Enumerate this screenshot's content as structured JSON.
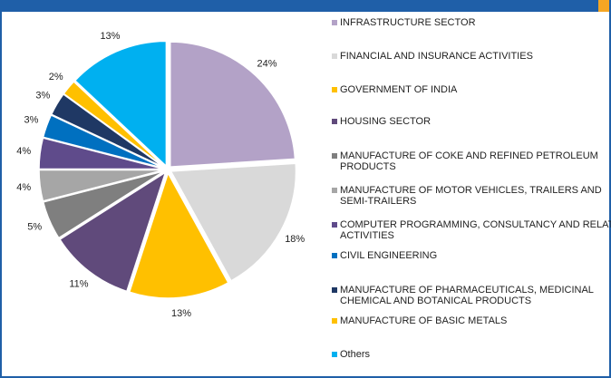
{
  "chart_data": {
    "type": "pie",
    "categories": [
      "INFRASTRUCTURE SECTOR",
      "FINANCIAL AND INSURANCE ACTIVITIES",
      "GOVERNMENT OF INDIA",
      "HOUSING SECTOR",
      "MANUFACTURE OF COKE AND REFINED PETROLEUM PRODUCTS",
      "MANUFACTURE OF MOTOR VEHICLES, TRAILERS AND SEMI-TRAILERS",
      "COMPUTER PROGRAMMING, CONSULTANCY AND RELATED ACTIVITIES",
      "CIVIL ENGINEERING",
      "MANUFACTURE OF PHARMACEUTICALS, MEDICINAL CHEMICAL AND BOTANICAL PRODUCTS",
      "MANUFACTURE OF BASIC METALS",
      "Others"
    ],
    "values": [
      24,
      18,
      13,
      11,
      5,
      4,
      4,
      3,
      3,
      2,
      13
    ],
    "value_labels": [
      "24%",
      "18%",
      "13%",
      "11%",
      "5%",
      "4%",
      "4%",
      "3%",
      "3%",
      "2%",
      "13%"
    ],
    "colors": [
      "#b3a2c7",
      "#d9d9d9",
      "#ffc000",
      "#604a7b",
      "#7f7f7f",
      "#a6a6a6",
      "#5f4b8b",
      "#0070c0",
      "#1f3864",
      "#ffc000",
      "#00b0f0"
    ]
  }
}
